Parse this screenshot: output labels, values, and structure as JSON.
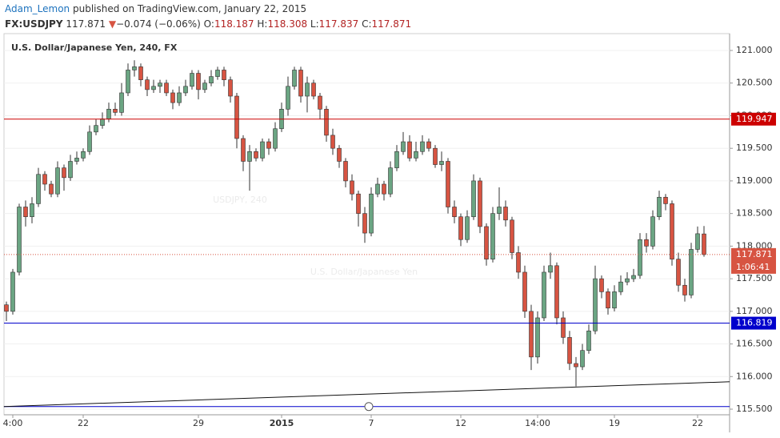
{
  "header": {
    "author": "Adam_Lemon",
    "published": "published on TradingView.com, January 22, 2015",
    "symbol": "FX:USDJPY",
    "price": "117.871",
    "arrow": "▼",
    "change": "−0.074 (−0.06%)",
    "ohlc": [
      {
        "key": "O:",
        "value": "118.187"
      },
      {
        "key": "H:",
        "value": "118.308"
      },
      {
        "key": "L:",
        "value": "117.837"
      },
      {
        "key": "C:",
        "value": "117.871"
      }
    ]
  },
  "chart_data": {
    "type": "candlestick",
    "title": "U.S. Dollar/Japanese Yen, 240, FX",
    "watermark": {
      "symbol": "USDJPY, 240",
      "name": "U.S. Dollar/Japanese Yen"
    },
    "up_color": "#6ba583",
    "down_color": "#d75442",
    "wick_color": "#333333",
    "grid": true,
    "categories": [
      null,
      "4:00",
      null,
      null,
      null,
      null,
      null,
      null,
      null,
      null,
      null,
      null,
      "22",
      null,
      null,
      null,
      null,
      null,
      null,
      null,
      null,
      null,
      null,
      null,
      null,
      null,
      null,
      null,
      null,
      null,
      "29",
      null,
      null,
      null,
      null,
      null,
      null,
      null,
      null,
      null,
      null,
      null,
      null,
      "2015",
      null,
      null,
      null,
      null,
      null,
      null,
      null,
      null,
      null,
      null,
      null,
      null,
      null,
      "7",
      null,
      null,
      null,
      null,
      null,
      null,
      null,
      null,
      null,
      null,
      null,
      null,
      null,
      "12",
      null,
      null,
      null,
      null,
      null,
      null,
      null,
      null,
      null,
      null,
      null,
      "14:00",
      null,
      null,
      null,
      null,
      null,
      null,
      null,
      null,
      null,
      null,
      null,
      "19",
      null,
      null,
      null,
      null,
      null,
      null,
      null,
      null,
      null,
      null,
      null,
      null,
      "22",
      null
    ],
    "open": [
      117.1,
      117.0,
      117.6,
      118.6,
      118.45,
      118.65,
      119.1,
      118.95,
      118.8,
      119.2,
      119.05,
      119.3,
      119.35,
      119.45,
      119.75,
      119.85,
      119.95,
      120.1,
      120.05,
      120.35,
      120.7,
      120.75,
      120.55,
      120.4,
      120.45,
      120.5,
      120.35,
      120.2,
      120.35,
      120.45,
      120.65,
      120.4,
      120.5,
      120.6,
      120.7,
      120.55,
      120.3,
      119.65,
      119.3,
      119.45,
      119.35,
      119.6,
      119.5,
      119.8,
      120.1,
      120.45,
      120.7,
      120.3,
      120.5,
      120.3,
      120.1,
      119.7,
      119.5,
      119.3,
      119.0,
      118.8,
      118.5,
      118.2,
      118.8,
      118.95,
      118.8,
      119.2,
      119.45,
      119.6,
      119.35,
      119.45,
      119.6,
      119.5,
      119.25,
      119.3,
      118.6,
      118.45,
      118.1,
      118.45,
      119.0,
      118.3,
      117.8,
      118.5,
      118.6,
      118.4,
      117.9,
      117.6,
      117.0,
      116.3,
      116.9,
      117.6,
      117.7,
      116.9,
      116.6,
      116.2,
      116.15,
      116.4,
      116.7,
      117.5,
      117.3,
      117.05,
      117.3,
      117.45,
      117.5,
      117.55,
      118.1,
      118.0,
      118.45,
      118.75,
      118.65,
      117.8,
      117.4,
      117.25,
      117.95,
      118.187
    ],
    "high": [
      117.15,
      117.65,
      118.65,
      118.7,
      118.75,
      119.2,
      119.15,
      119.0,
      119.3,
      119.25,
      119.4,
      119.45,
      119.5,
      119.85,
      119.95,
      120.05,
      120.2,
      120.2,
      120.5,
      120.8,
      120.85,
      120.8,
      120.6,
      120.55,
      120.55,
      120.55,
      120.4,
      120.45,
      120.55,
      120.7,
      120.7,
      120.55,
      120.7,
      120.75,
      120.75,
      120.6,
      120.35,
      119.7,
      119.55,
      119.5,
      119.65,
      119.65,
      119.9,
      120.2,
      120.6,
      120.75,
      120.75,
      120.6,
      120.55,
      120.35,
      120.15,
      119.8,
      119.55,
      119.35,
      119.1,
      118.85,
      118.6,
      118.9,
      119.05,
      119.0,
      119.3,
      119.55,
      119.75,
      119.7,
      119.6,
      119.7,
      119.65,
      119.55,
      119.45,
      119.35,
      118.7,
      118.5,
      118.55,
      119.1,
      119.05,
      118.35,
      118.6,
      118.9,
      118.7,
      118.45,
      118.0,
      117.7,
      117.1,
      117.0,
      117.7,
      117.9,
      117.75,
      117.0,
      116.7,
      116.3,
      116.5,
      116.8,
      117.7,
      117.55,
      117.35,
      117.4,
      117.55,
      117.6,
      117.65,
      118.2,
      118.2,
      118.55,
      118.85,
      118.8,
      118.7,
      117.9,
      117.5,
      118.05,
      118.3,
      118.308
    ],
    "low": [
      116.85,
      116.95,
      117.55,
      118.3,
      118.35,
      118.6,
      118.85,
      118.75,
      118.75,
      118.85,
      119.0,
      119.25,
      119.3,
      119.4,
      119.7,
      119.8,
      119.9,
      120.0,
      120.0,
      120.3,
      120.6,
      120.45,
      120.3,
      120.35,
      120.35,
      120.3,
      120.1,
      120.15,
      120.3,
      120.4,
      120.25,
      120.35,
      120.45,
      120.55,
      120.45,
      120.2,
      119.5,
      119.15,
      118.85,
      119.3,
      119.3,
      119.4,
      119.45,
      119.75,
      120.0,
      120.4,
      120.2,
      120.05,
      120.25,
      119.95,
      119.6,
      119.4,
      119.2,
      118.9,
      118.7,
      118.3,
      118.05,
      118.15,
      118.75,
      118.7,
      118.75,
      119.15,
      119.4,
      119.3,
      119.3,
      119.4,
      119.45,
      119.2,
      119.15,
      118.5,
      118.35,
      118.0,
      118.05,
      118.4,
      118.2,
      117.7,
      117.75,
      118.4,
      118.3,
      117.8,
      117.5,
      116.9,
      116.1,
      116.2,
      116.85,
      117.5,
      116.8,
      116.5,
      116.1,
      115.85,
      116.1,
      116.35,
      116.65,
      117.2,
      116.95,
      117.0,
      117.25,
      117.4,
      117.45,
      117.5,
      117.9,
      117.95,
      118.4,
      118.55,
      117.7,
      117.3,
      117.15,
      117.2,
      117.9,
      117.837
    ],
    "close": [
      117.0,
      117.6,
      118.6,
      118.45,
      118.65,
      119.1,
      118.95,
      118.8,
      119.2,
      119.05,
      119.3,
      119.35,
      119.45,
      119.75,
      119.85,
      119.95,
      120.1,
      120.05,
      120.35,
      120.7,
      120.75,
      120.55,
      120.4,
      120.45,
      120.5,
      120.35,
      120.2,
      120.35,
      120.45,
      120.65,
      120.4,
      120.5,
      120.6,
      120.7,
      120.55,
      120.3,
      119.65,
      119.3,
      119.45,
      119.35,
      119.6,
      119.5,
      119.8,
      120.1,
      120.45,
      120.7,
      120.3,
      120.5,
      120.3,
      120.1,
      119.7,
      119.5,
      119.3,
      119.0,
      118.8,
      118.5,
      118.2,
      118.8,
      118.95,
      118.8,
      119.2,
      119.45,
      119.6,
      119.35,
      119.45,
      119.6,
      119.5,
      119.25,
      119.3,
      118.6,
      118.45,
      118.1,
      118.45,
      119.0,
      118.3,
      117.8,
      118.5,
      118.6,
      118.4,
      117.9,
      117.6,
      117.0,
      116.3,
      116.9,
      117.6,
      117.7,
      116.9,
      116.6,
      116.2,
      116.15,
      116.4,
      116.7,
      117.5,
      117.3,
      117.05,
      117.3,
      117.45,
      117.5,
      117.55,
      118.1,
      118.0,
      118.45,
      118.75,
      118.65,
      117.8,
      117.4,
      117.25,
      117.95,
      118.19,
      117.871
    ],
    "ylim": [
      115.414,
      121.258
    ],
    "yticks": [
      {
        "value": 115.5,
        "label": "115.500"
      },
      {
        "value": 116,
        "label": "116.000"
      },
      {
        "value": 116.5,
        "label": "116.500"
      },
      {
        "value": 117,
        "label": "117.000"
      },
      {
        "value": 117.5,
        "label": "117.500"
      },
      {
        "value": 118,
        "label": "118.000"
      },
      {
        "value": 118.5,
        "label": "118.500"
      },
      {
        "value": 119,
        "label": "119.000"
      },
      {
        "value": 119.5,
        "label": "119.500"
      },
      {
        "value": 120,
        "label": "120.000"
      },
      {
        "value": 120.5,
        "label": "120.500"
      },
      {
        "value": 121,
        "label": "121.000"
      }
    ],
    "levels": [
      {
        "value": 119.947,
        "color": "#cc0000"
      },
      {
        "value": 116.819,
        "color": "#0000cc"
      }
    ],
    "lower_line": {
      "value": 115.54,
      "color": "#0000cc"
    },
    "last_price": {
      "value": 117.871,
      "color": "#d75442",
      "countdown": "1:06:41"
    },
    "trendline": {
      "x": [
        -0.4,
        113
      ],
      "y": [
        115.54,
        115.92
      ],
      "color": "#111111"
    }
  }
}
